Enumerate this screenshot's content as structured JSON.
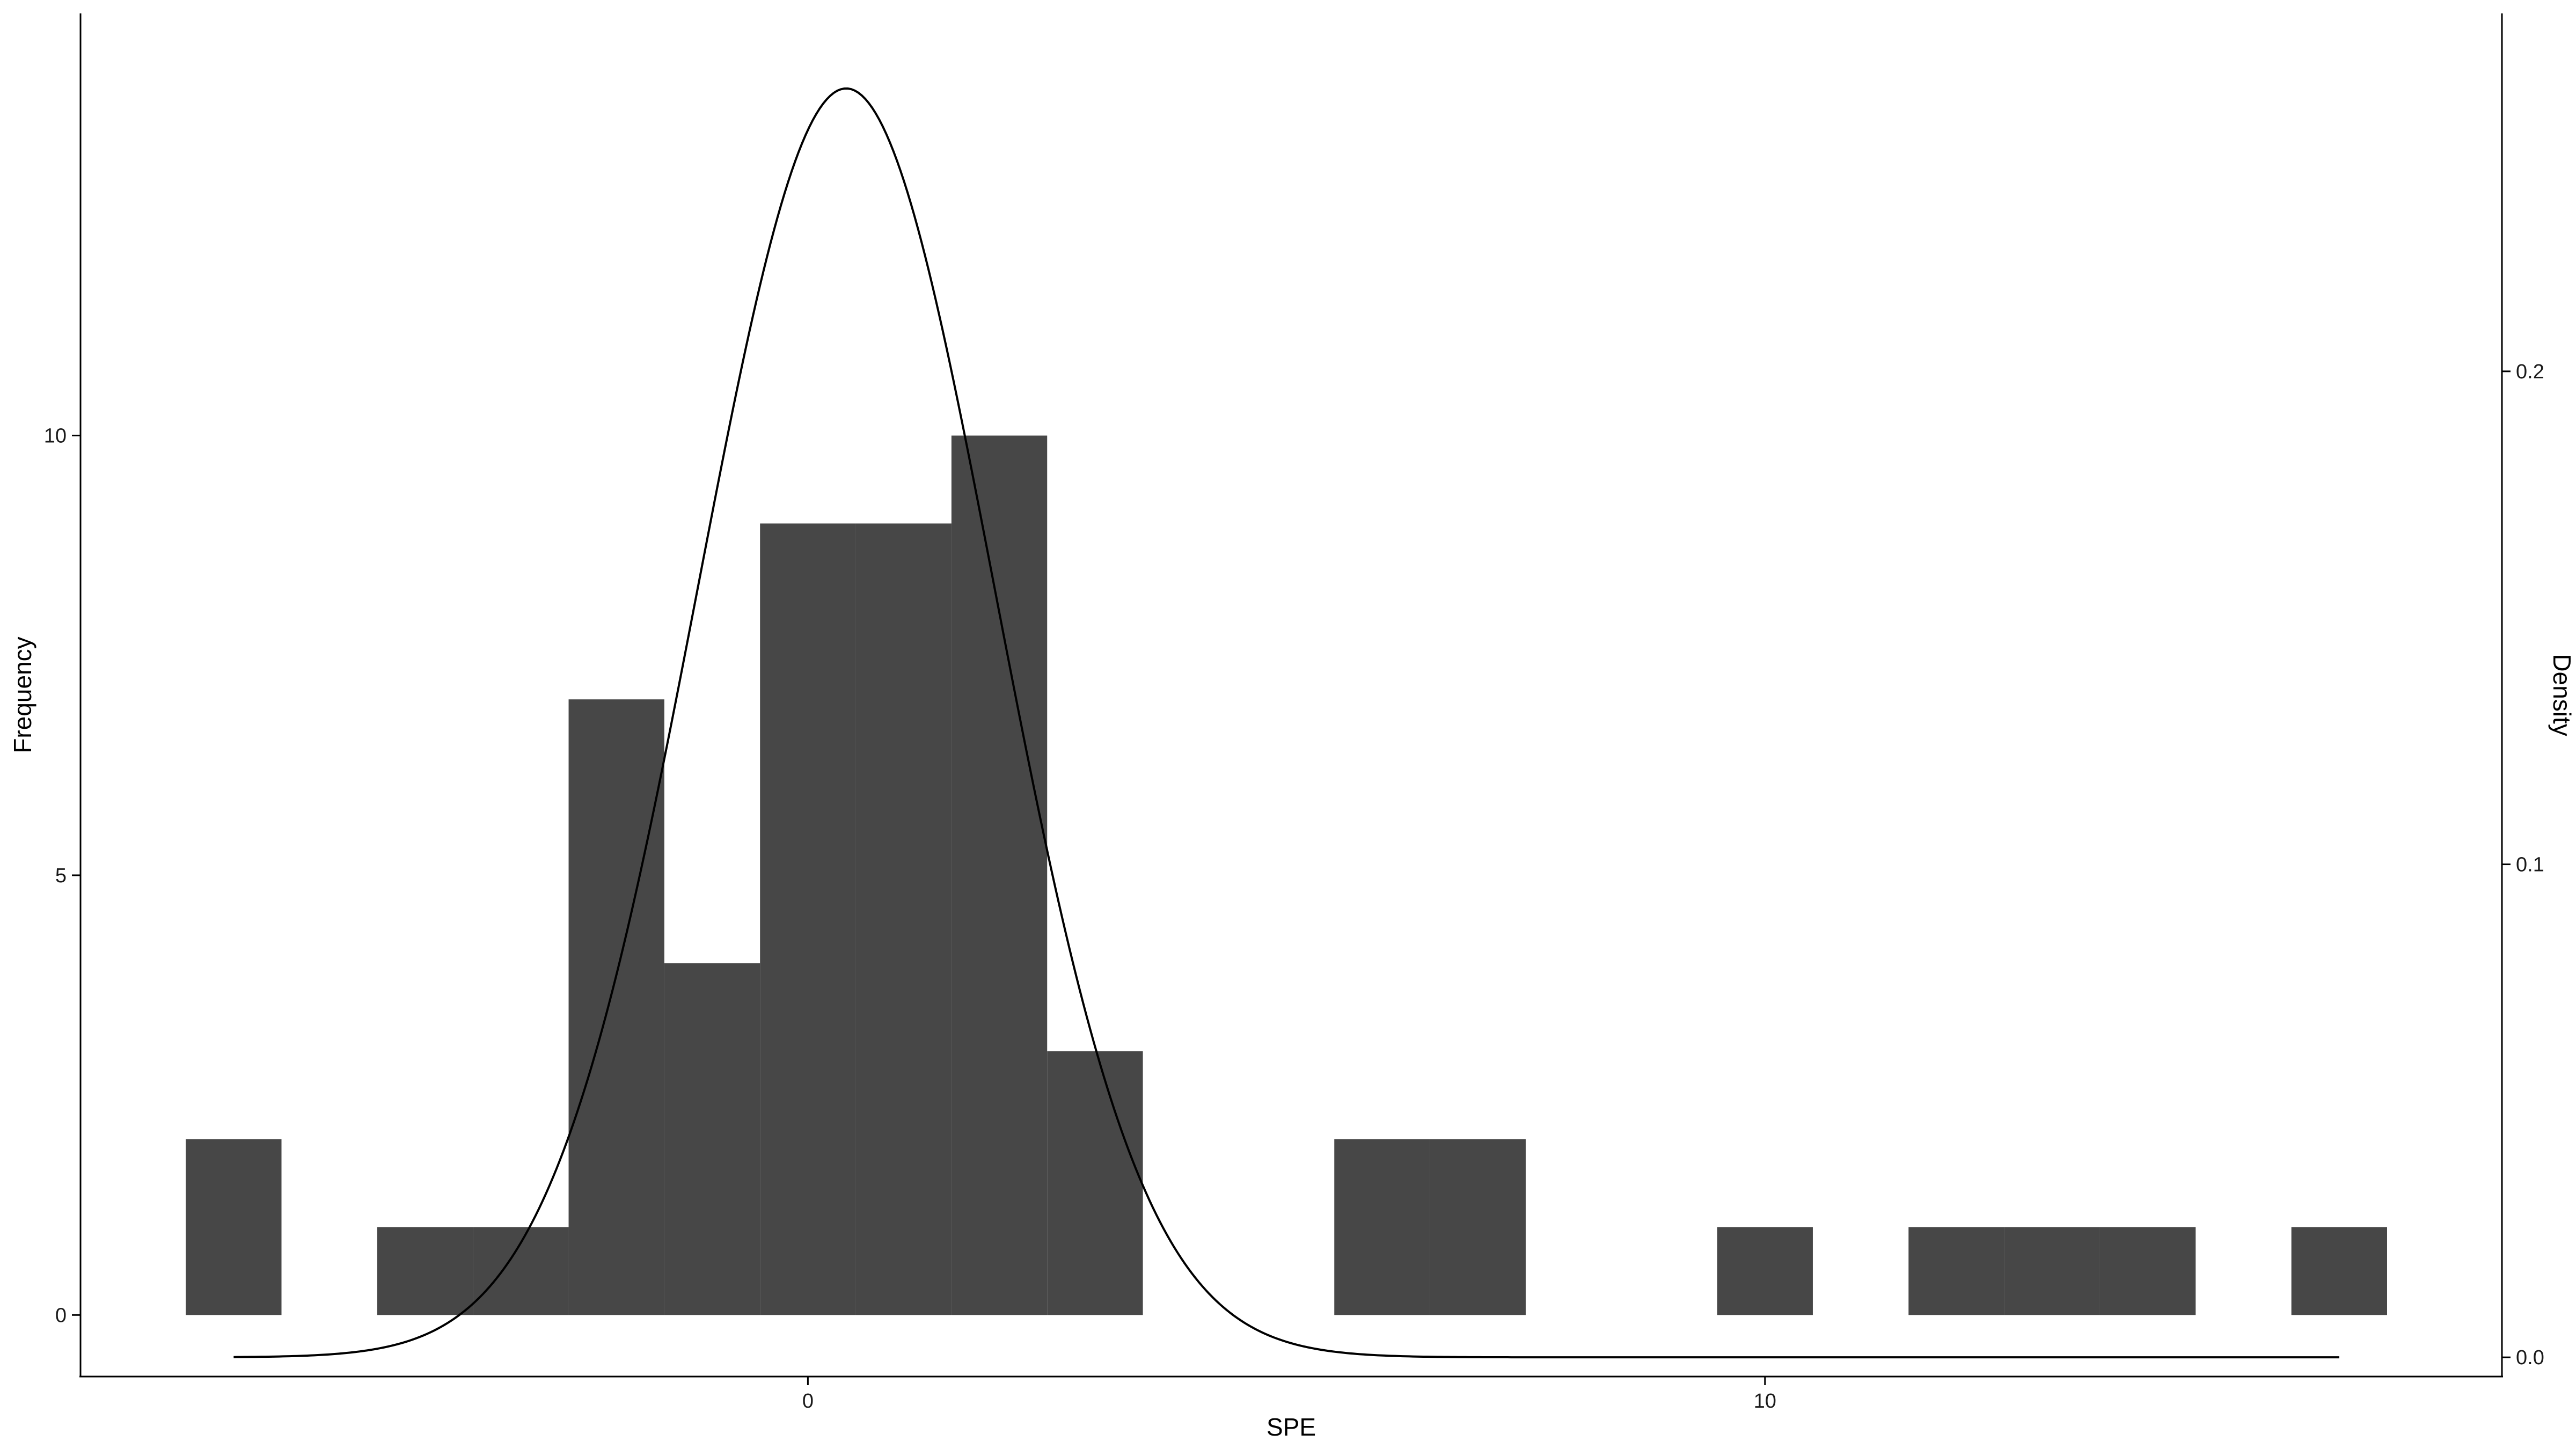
{
  "chart_data": {
    "type": "bar",
    "xlabel": "SPE",
    "ylabel": "Frequency",
    "y2label": "Density",
    "bar_color": "#474747",
    "line_color": "#000000",
    "xlim": [
      -7.6,
      17.7
    ],
    "ylim": [
      -0.7,
      14.8
    ],
    "y2lim": [
      -0.0039,
      0.2726
    ],
    "x_ticks": [
      0,
      10
    ],
    "y_ticks": [
      0,
      5,
      10
    ],
    "y2_ticks": [
      0.0,
      0.1,
      0.2
    ],
    "x_tick_labels": [
      "0",
      "10"
    ],
    "y_tick_labels": [
      "0",
      "5",
      "10"
    ],
    "y2_tick_labels": [
      "0.0",
      "0.1",
      "0.2"
    ],
    "bin_width": 1,
    "bins": [
      {
        "x0": -6.5,
        "x1": -5.5,
        "count": 2
      },
      {
        "x0": -5.5,
        "x1": -4.5,
        "count": 0
      },
      {
        "x0": -4.5,
        "x1": -3.5,
        "count": 1
      },
      {
        "x0": -3.5,
        "x1": -2.5,
        "count": 1
      },
      {
        "x0": -2.5,
        "x1": -1.5,
        "count": 7
      },
      {
        "x0": -1.5,
        "x1": -0.5,
        "count": 4
      },
      {
        "x0": -0.5,
        "x1": 0.5,
        "count": 9
      },
      {
        "x0": 0.5,
        "x1": 1.5,
        "count": 9
      },
      {
        "x0": 1.5,
        "x1": 2.5,
        "count": 10
      },
      {
        "x0": 2.5,
        "x1": 3.5,
        "count": 3
      },
      {
        "x0": 3.5,
        "x1": 4.5,
        "count": 0
      },
      {
        "x0": 4.5,
        "x1": 5.5,
        "count": 0
      },
      {
        "x0": 5.5,
        "x1": 6.5,
        "count": 2
      },
      {
        "x0": 6.5,
        "x1": 7.5,
        "count": 2
      },
      {
        "x0": 7.5,
        "x1": 8.5,
        "count": 0
      },
      {
        "x0": 8.5,
        "x1": 9.5,
        "count": 0
      },
      {
        "x0": 9.5,
        "x1": 10.5,
        "count": 1
      },
      {
        "x0": 10.5,
        "x1": 11.5,
        "count": 0
      },
      {
        "x0": 11.5,
        "x1": 12.5,
        "count": 1
      },
      {
        "x0": 12.5,
        "x1": 13.5,
        "count": 1
      },
      {
        "x0": 13.5,
        "x1": 14.5,
        "count": 1
      },
      {
        "x0": 14.5,
        "x1": 15.5,
        "count": 0
      },
      {
        "x0": 15.5,
        "x1": 16.5,
        "count": 1
      }
    ],
    "density_curve": {
      "distribution": "normal",
      "mean": 0.4,
      "sd": 1.55,
      "x_from": -6.0,
      "x_to": 16.0
    }
  }
}
